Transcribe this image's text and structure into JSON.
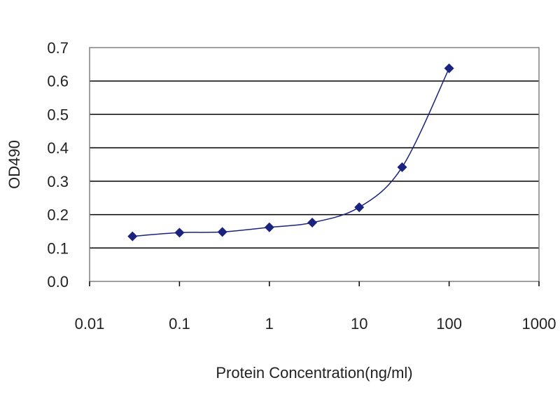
{
  "chart_data": {
    "type": "scatter",
    "title": "",
    "xlabel": "Protein Concentration(ng/ml)",
    "ylabel": "OD490",
    "x_scale": "log",
    "xlim": [
      0.01,
      1000
    ],
    "ylim": [
      0.0,
      0.7
    ],
    "x_ticks": [
      "0.01",
      "0.1",
      "1",
      "10",
      "100",
      "1000"
    ],
    "y_ticks": [
      "0.0",
      "0.1",
      "0.2",
      "0.3",
      "0.4",
      "0.5",
      "0.6",
      "0.7"
    ],
    "grid": "horizontal",
    "legend": "none",
    "series": [
      {
        "x": [
          0.03,
          0.1,
          0.3,
          1,
          3,
          10,
          30,
          100
        ],
        "y": [
          0.135,
          0.146,
          0.148,
          0.162,
          0.176,
          0.222,
          0.342,
          0.638
        ],
        "marker": "diamond",
        "color": "#1a237e",
        "line": "smooth"
      }
    ]
  }
}
